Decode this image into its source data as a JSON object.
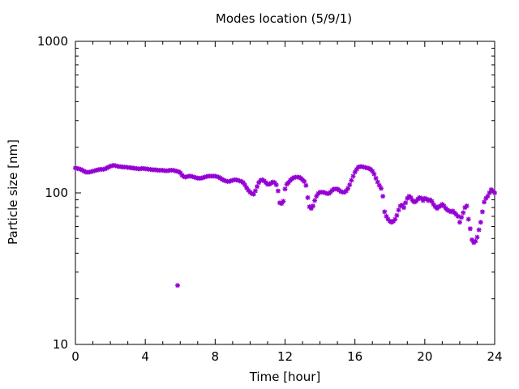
{
  "chart_data": {
    "type": "scatter",
    "title": "Modes location (5/9/1)",
    "xlabel": "Time [hour]",
    "ylabel": "Particle size [nm]",
    "xlim": [
      0,
      24
    ],
    "ylim": [
      10,
      1000
    ],
    "yscale": "log",
    "xticks": [
      "0",
      "4",
      "8",
      "12",
      "16",
      "20",
      "24"
    ],
    "yticks": [
      "10",
      "100",
      "1000"
    ],
    "marker_color": "#9400d3",
    "series": [
      {
        "name": "Modes location",
        "points": [
          [
            0.0,
            146
          ],
          [
            0.1,
            145
          ],
          [
            0.2,
            144
          ],
          [
            0.3,
            143
          ],
          [
            0.4,
            141
          ],
          [
            0.5,
            139
          ],
          [
            0.6,
            137
          ],
          [
            0.7,
            137
          ],
          [
            0.8,
            137
          ],
          [
            0.9,
            138
          ],
          [
            1.0,
            139
          ],
          [
            1.1,
            140
          ],
          [
            1.2,
            141
          ],
          [
            1.3,
            142
          ],
          [
            1.4,
            143
          ],
          [
            1.5,
            143
          ],
          [
            1.6,
            143
          ],
          [
            1.7,
            144
          ],
          [
            1.8,
            146
          ],
          [
            1.9,
            148
          ],
          [
            2.0,
            150
          ],
          [
            2.1,
            151
          ],
          [
            2.2,
            152
          ],
          [
            2.3,
            151
          ],
          [
            2.4,
            150
          ],
          [
            2.5,
            149
          ],
          [
            2.6,
            149
          ],
          [
            2.7,
            148
          ],
          [
            2.8,
            148
          ],
          [
            2.9,
            148
          ],
          [
            3.0,
            147
          ],
          [
            3.1,
            147
          ],
          [
            3.2,
            146
          ],
          [
            3.3,
            146
          ],
          [
            3.4,
            145
          ],
          [
            3.5,
            145
          ],
          [
            3.6,
            144
          ],
          [
            3.7,
            144
          ],
          [
            3.8,
            145
          ],
          [
            3.9,
            145
          ],
          [
            4.0,
            144
          ],
          [
            4.1,
            144
          ],
          [
            4.2,
            143
          ],
          [
            4.3,
            143
          ],
          [
            4.4,
            142
          ],
          [
            4.5,
            142
          ],
          [
            4.6,
            142
          ],
          [
            4.7,
            141
          ],
          [
            4.8,
            141
          ],
          [
            4.9,
            141
          ],
          [
            5.0,
            141
          ],
          [
            5.1,
            140
          ],
          [
            5.2,
            140
          ],
          [
            5.3,
            140
          ],
          [
            5.4,
            141
          ],
          [
            5.5,
            141
          ],
          [
            5.6,
            141
          ],
          [
            5.7,
            140
          ],
          [
            5.8,
            139
          ],
          [
            5.85,
            24.5
          ],
          [
            5.9,
            138
          ],
          [
            6.0,
            136
          ],
          [
            6.1,
            131
          ],
          [
            6.2,
            128
          ],
          [
            6.3,
            127
          ],
          [
            6.4,
            128
          ],
          [
            6.5,
            129
          ],
          [
            6.6,
            129
          ],
          [
            6.7,
            128
          ],
          [
            6.8,
            127
          ],
          [
            6.9,
            126
          ],
          [
            7.0,
            125
          ],
          [
            7.1,
            125
          ],
          [
            7.2,
            125
          ],
          [
            7.3,
            126
          ],
          [
            7.4,
            127
          ],
          [
            7.5,
            128
          ],
          [
            7.6,
            129
          ],
          [
            7.7,
            129
          ],
          [
            7.8,
            129
          ],
          [
            7.9,
            129
          ],
          [
            8.0,
            129
          ],
          [
            8.1,
            128
          ],
          [
            8.2,
            127
          ],
          [
            8.3,
            125
          ],
          [
            8.4,
            123
          ],
          [
            8.5,
            121
          ],
          [
            8.6,
            120
          ],
          [
            8.7,
            119
          ],
          [
            8.8,
            119
          ],
          [
            8.9,
            120
          ],
          [
            9.0,
            121
          ],
          [
            9.1,
            122
          ],
          [
            9.2,
            122
          ],
          [
            9.3,
            121
          ],
          [
            9.4,
            120
          ],
          [
            9.5,
            119
          ],
          [
            9.6,
            117
          ],
          [
            9.7,
            113
          ],
          [
            9.8,
            108
          ],
          [
            9.9,
            104
          ],
          [
            10.0,
            101
          ],
          [
            10.1,
            99
          ],
          [
            10.2,
            98
          ],
          [
            10.3,
            103
          ],
          [
            10.4,
            110
          ],
          [
            10.5,
            117
          ],
          [
            10.6,
            121
          ],
          [
            10.7,
            122
          ],
          [
            10.8,
            120
          ],
          [
            10.9,
            117
          ],
          [
            11.0,
            114
          ],
          [
            11.1,
            114
          ],
          [
            11.2,
            116
          ],
          [
            11.3,
            118
          ],
          [
            11.4,
            117
          ],
          [
            11.5,
            113
          ],
          [
            11.6,
            103
          ],
          [
            11.7,
            86
          ],
          [
            11.8,
            85
          ],
          [
            11.9,
            88
          ],
          [
            12.0,
            106
          ],
          [
            12.1,
            114
          ],
          [
            12.2,
            117
          ],
          [
            12.3,
            121
          ],
          [
            12.4,
            124
          ],
          [
            12.5,
            126
          ],
          [
            12.6,
            127
          ],
          [
            12.7,
            127
          ],
          [
            12.8,
            127
          ],
          [
            12.9,
            125
          ],
          [
            13.0,
            122
          ],
          [
            13.1,
            119
          ],
          [
            13.2,
            112
          ],
          [
            13.3,
            93
          ],
          [
            13.4,
            81
          ],
          [
            13.5,
            79
          ],
          [
            13.6,
            82
          ],
          [
            13.7,
            89
          ],
          [
            13.8,
            95
          ],
          [
            13.9,
            99
          ],
          [
            14.0,
            101
          ],
          [
            14.1,
            101
          ],
          [
            14.2,
            101
          ],
          [
            14.3,
            100
          ],
          [
            14.4,
            99
          ],
          [
            14.5,
            99
          ],
          [
            14.6,
            101
          ],
          [
            14.7,
            104
          ],
          [
            14.8,
            106
          ],
          [
            14.9,
            106
          ],
          [
            15.0,
            106
          ],
          [
            15.1,
            104
          ],
          [
            15.2,
            102
          ],
          [
            15.3,
            101
          ],
          [
            15.4,
            101
          ],
          [
            15.5,
            103
          ],
          [
            15.6,
            107
          ],
          [
            15.7,
            113
          ],
          [
            15.8,
            121
          ],
          [
            15.9,
            129
          ],
          [
            16.0,
            137
          ],
          [
            16.1,
            143
          ],
          [
            16.2,
            148
          ],
          [
            16.3,
            149
          ],
          [
            16.4,
            149
          ],
          [
            16.5,
            148
          ],
          [
            16.6,
            147
          ],
          [
            16.7,
            146
          ],
          [
            16.8,
            145
          ],
          [
            16.9,
            143
          ],
          [
            17.0,
            139
          ],
          [
            17.1,
            133
          ],
          [
            17.2,
            125
          ],
          [
            17.3,
            118
          ],
          [
            17.4,
            112
          ],
          [
            17.5,
            107
          ],
          [
            17.6,
            95
          ],
          [
            17.7,
            75
          ],
          [
            17.8,
            70
          ],
          [
            17.9,
            67
          ],
          [
            18.0,
            65
          ],
          [
            18.1,
            64
          ],
          [
            18.2,
            65
          ],
          [
            18.3,
            67
          ],
          [
            18.4,
            71
          ],
          [
            18.5,
            77
          ],
          [
            18.6,
            82
          ],
          [
            18.7,
            83
          ],
          [
            18.8,
            80
          ],
          [
            18.9,
            86
          ],
          [
            19.0,
            92
          ],
          [
            19.1,
            95
          ],
          [
            19.2,
            93
          ],
          [
            19.3,
            89
          ],
          [
            19.4,
            87
          ],
          [
            19.5,
            88
          ],
          [
            19.6,
            91
          ],
          [
            19.7,
            93
          ],
          [
            19.8,
            92
          ],
          [
            19.9,
            89
          ],
          [
            20.0,
            92
          ],
          [
            20.1,
            91
          ],
          [
            20.2,
            89
          ],
          [
            20.3,
            90
          ],
          [
            20.4,
            88
          ],
          [
            20.5,
            84
          ],
          [
            20.6,
            81
          ],
          [
            20.7,
            79
          ],
          [
            20.8,
            81
          ],
          [
            20.9,
            82
          ],
          [
            21.0,
            84
          ],
          [
            21.1,
            82
          ],
          [
            21.2,
            79
          ],
          [
            21.3,
            77
          ],
          [
            21.4,
            76
          ],
          [
            21.5,
            75
          ],
          [
            21.6,
            76
          ],
          [
            21.7,
            74
          ],
          [
            21.8,
            72
          ],
          [
            21.9,
            70
          ],
          [
            22.0,
            64
          ],
          [
            22.1,
            69
          ],
          [
            22.2,
            74
          ],
          [
            22.3,
            80
          ],
          [
            22.4,
            82
          ],
          [
            22.5,
            67
          ],
          [
            22.6,
            58
          ],
          [
            22.7,
            49
          ],
          [
            22.8,
            47
          ],
          [
            22.9,
            48
          ],
          [
            23.0,
            51
          ],
          [
            23.1,
            57
          ],
          [
            23.2,
            64
          ],
          [
            23.3,
            75
          ],
          [
            23.4,
            87
          ],
          [
            23.5,
            92
          ],
          [
            23.6,
            95
          ],
          [
            23.7,
            100
          ],
          [
            23.8,
            105
          ],
          [
            23.9,
            103
          ],
          [
            24.0,
            100
          ]
        ]
      }
    ]
  }
}
